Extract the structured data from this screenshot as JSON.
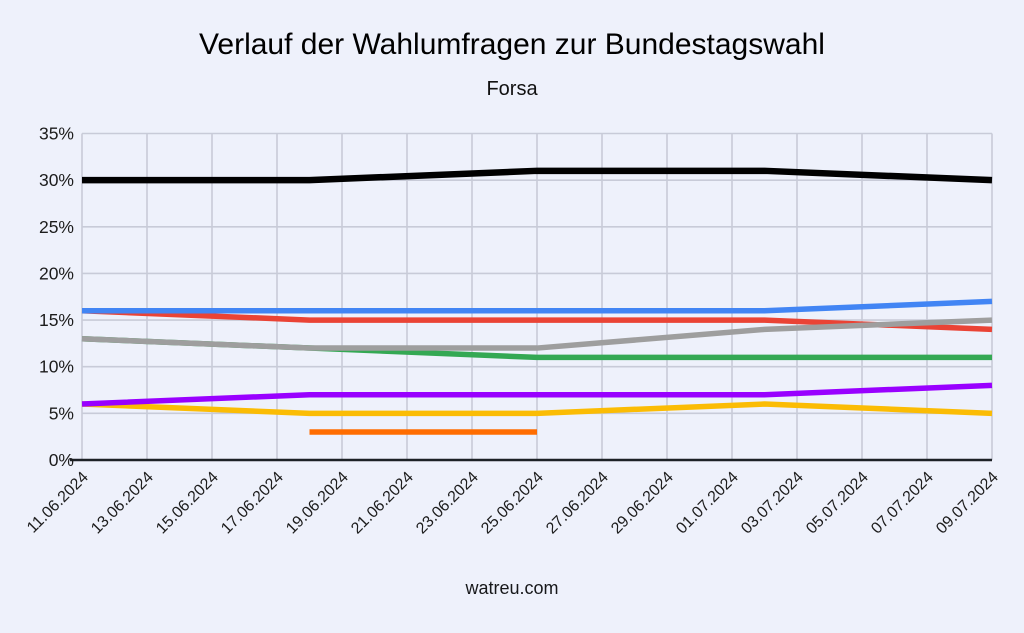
{
  "page": {
    "footer": "watreu.com",
    "background_color": "#eef1fb"
  },
  "chart_data": {
    "type": "line",
    "title": "Verlauf der Wahlumfragen zur Bundestagswahl",
    "subtitle": "Forsa",
    "legend": "none",
    "grid": true,
    "x_axis": {
      "tick_labels": [
        "11.06.2024",
        "13.06.2024",
        "15.06.2024",
        "17.06.2024",
        "19.06.2024",
        "21.06.2024",
        "23.06.2024",
        "25.06.2024",
        "27.06.2024",
        "29.06.2024",
        "01.07.2024",
        "03.07.2024",
        "05.07.2024",
        "07.07.2024",
        "09.07.2024"
      ],
      "tick_day_offsets": [
        0,
        2,
        4,
        6,
        8,
        10,
        12,
        14,
        16,
        18,
        20,
        22,
        24,
        26,
        28
      ],
      "range_days": [
        0,
        28
      ]
    },
    "y_axis": {
      "tick_labels": [
        "0%",
        "5%",
        "10%",
        "15%",
        "20%",
        "25%",
        "30%",
        "35%"
      ],
      "tick_values": [
        0,
        5,
        10,
        15,
        20,
        25,
        30,
        35
      ],
      "ylim": [
        0,
        35
      ]
    },
    "poll_dates": [
      "11.06.2024",
      "18.06.2024",
      "25.06.2024",
      "02.07.2024",
      "09.07.2024"
    ],
    "series": [
      {
        "name": "orange",
        "color": "#ff6d01",
        "width": 5.5,
        "day_offsets": [
          7,
          14
        ],
        "values": [
          3,
          3
        ]
      },
      {
        "name": "yellow",
        "color": "#fbbc04",
        "width": 5.5,
        "day_offsets": [
          0,
          7,
          14,
          21,
          28
        ],
        "values": [
          6,
          5,
          5,
          6,
          5
        ]
      },
      {
        "name": "purple",
        "color": "#9900ff",
        "width": 5.5,
        "day_offsets": [
          0,
          7,
          14,
          21,
          28
        ],
        "values": [
          6,
          7,
          7,
          7,
          8
        ]
      },
      {
        "name": "green",
        "color": "#34a853",
        "width": 5.5,
        "day_offsets": [
          0,
          7,
          14,
          21,
          28
        ],
        "values": [
          13,
          12,
          11,
          11,
          11
        ]
      },
      {
        "name": "red",
        "color": "#ea4335",
        "width": 5.5,
        "day_offsets": [
          0,
          7,
          14,
          21,
          28
        ],
        "values": [
          16,
          15,
          15,
          15,
          14
        ]
      },
      {
        "name": "gray",
        "color": "#9e9e9e",
        "width": 5.5,
        "day_offsets": [
          0,
          7,
          14,
          21,
          28
        ],
        "values": [
          13,
          12,
          12,
          14,
          15
        ]
      },
      {
        "name": "blue",
        "color": "#4285f4",
        "width": 5.5,
        "day_offsets": [
          0,
          7,
          14,
          21,
          28
        ],
        "values": [
          16,
          16,
          16,
          16,
          17
        ]
      },
      {
        "name": "black",
        "color": "#000000",
        "width": 6.5,
        "day_offsets": [
          0,
          7,
          14,
          21,
          28
        ],
        "values": [
          30,
          30,
          31,
          31,
          30
        ]
      }
    ],
    "style": {
      "background": "#eef1fb",
      "grid_color": "#c8cbd8",
      "axis_color": "#1d2126",
      "label_color": "#1c1c1c"
    }
  }
}
